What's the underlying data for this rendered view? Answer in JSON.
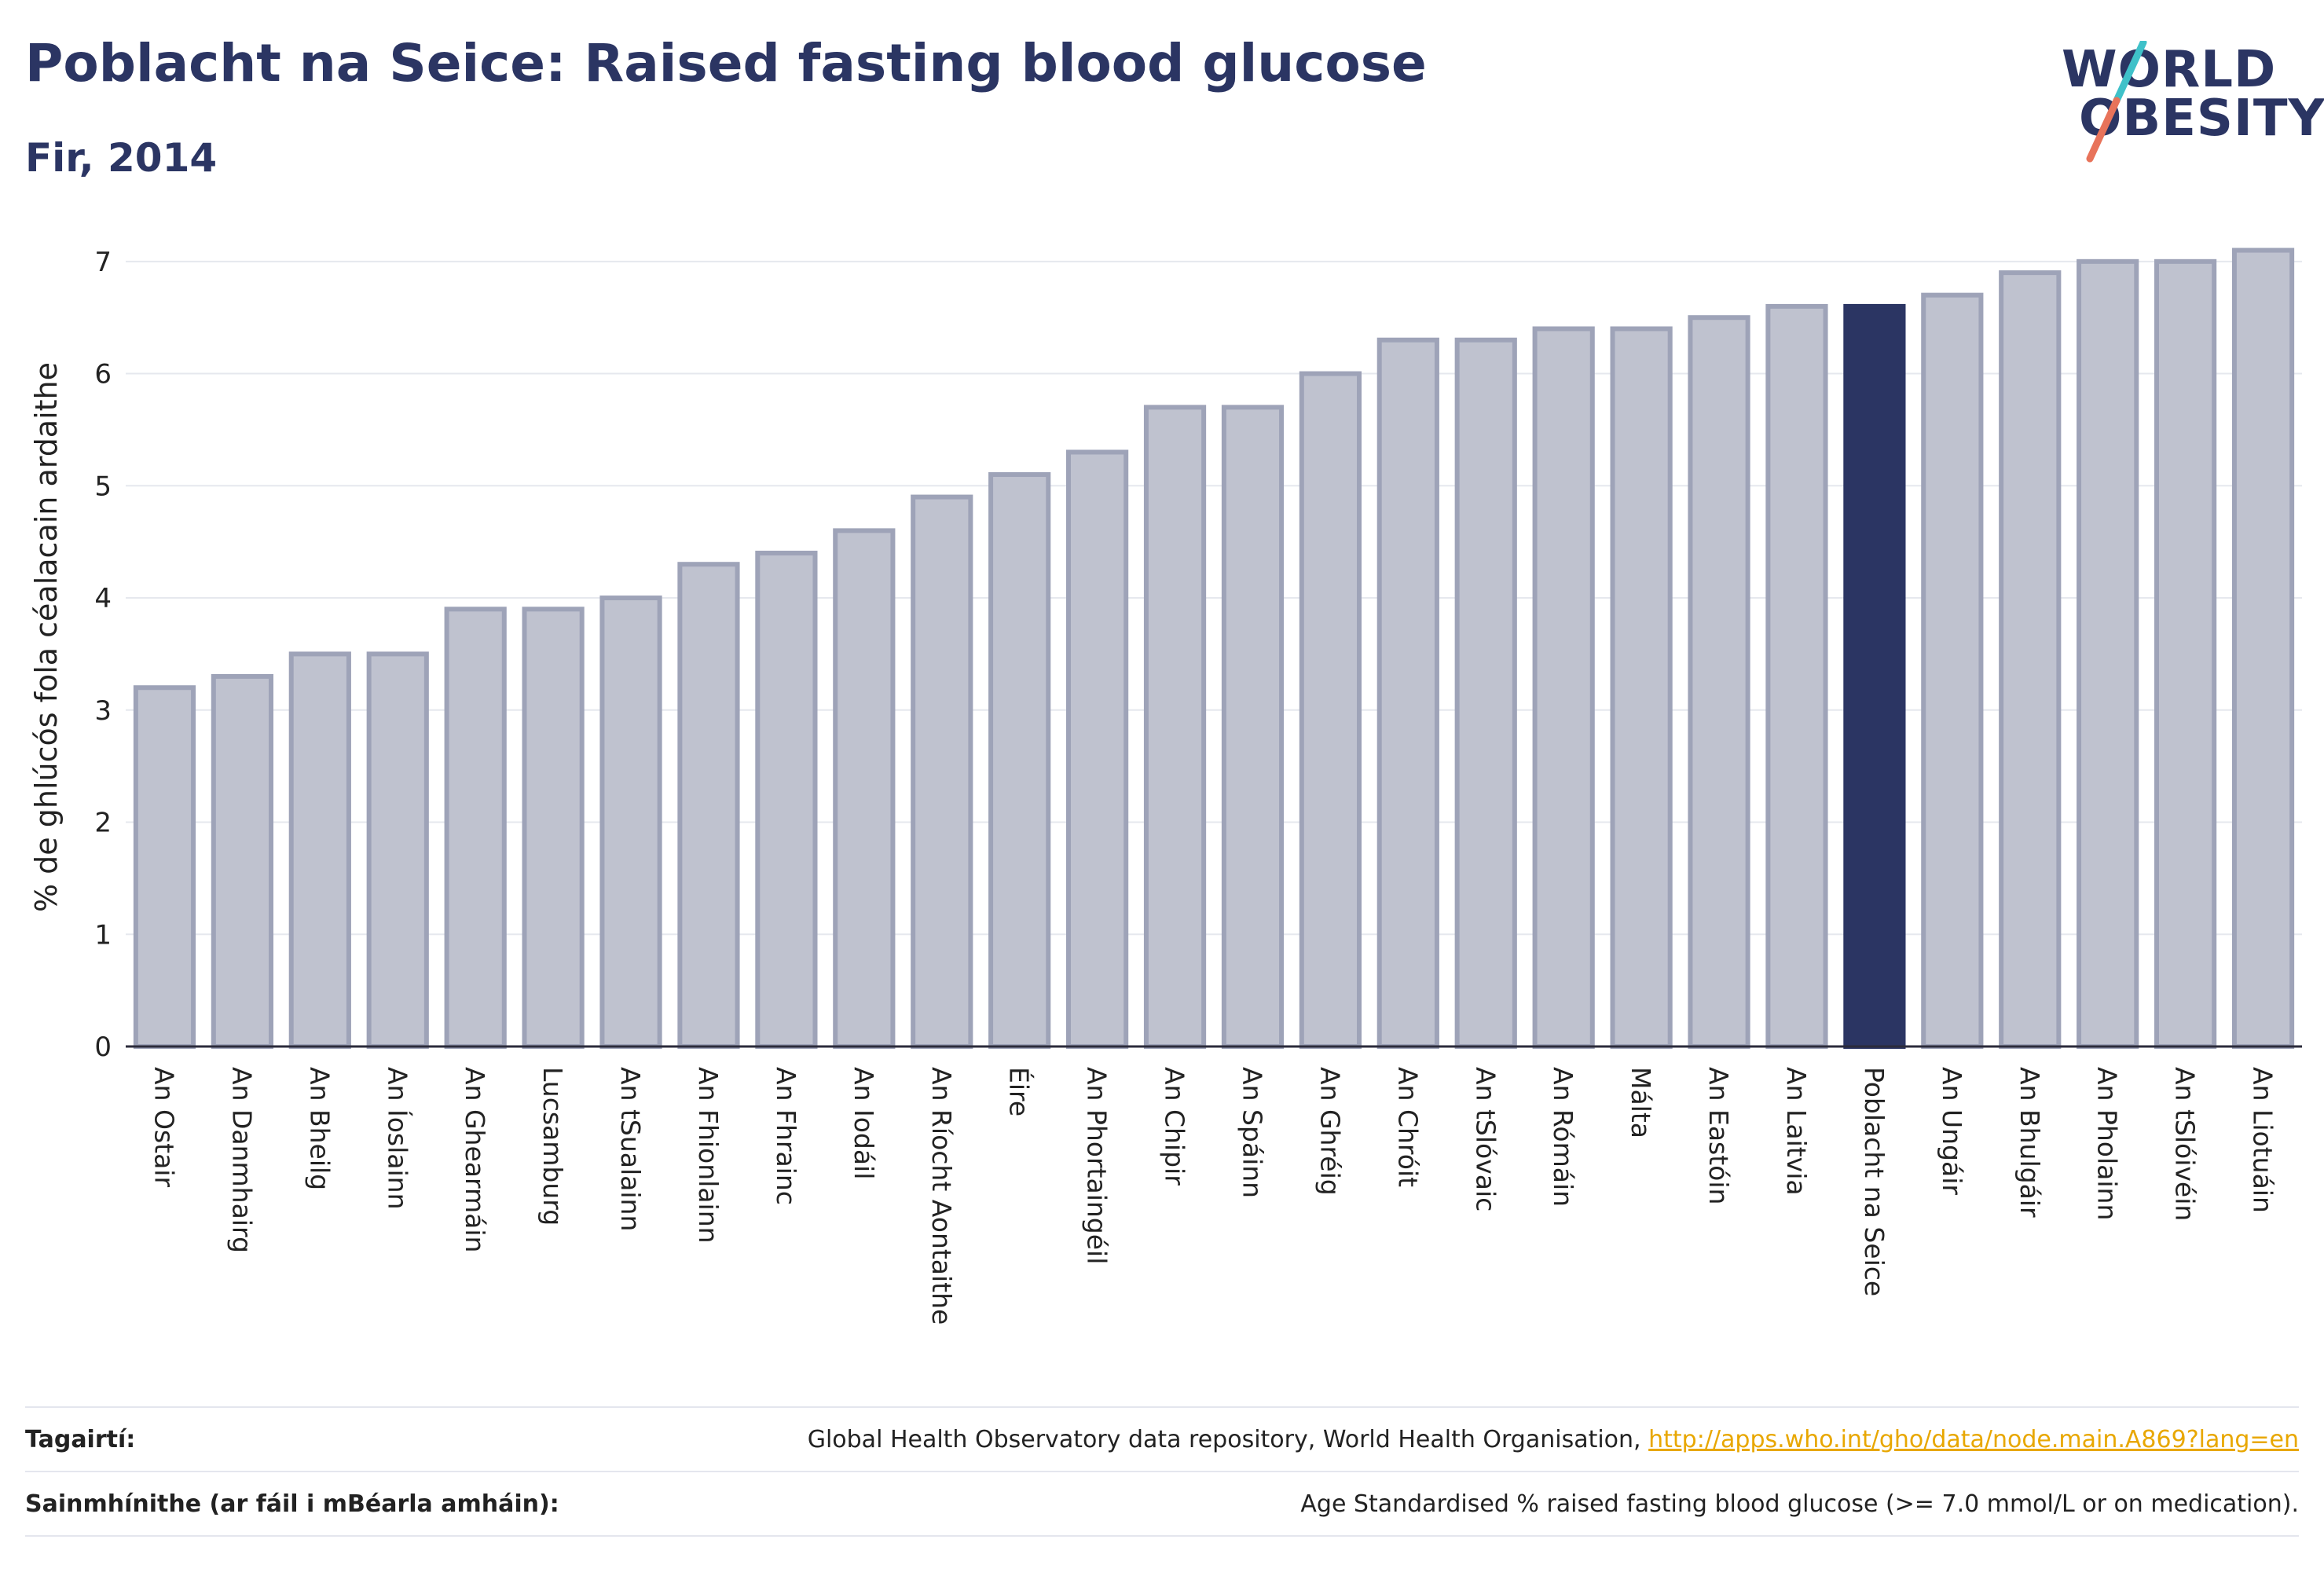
{
  "header": {
    "title": "Poblacht na Seice: Raised fasting blood glucose",
    "subtitle": "Fir, 2014"
  },
  "logo": {
    "line1": "WORLD",
    "line2": "OBESITY",
    "accent_colors": [
      "#3fc1c9",
      "#e8735a"
    ]
  },
  "colors": {
    "bar": "#bfc2cf",
    "bar_border": "#9ea3b8",
    "highlight": "#2b3563"
  },
  "chart_data": {
    "type": "bar",
    "title": "Poblacht na Seice: Raised fasting blood glucose",
    "subtitle": "Fir, 2014",
    "ylabel": "% de ghlúcós fola céalacain ardaithe",
    "xlabel": "",
    "ylim": [
      0,
      7.3
    ],
    "yticks": [
      0,
      1,
      2,
      3,
      4,
      5,
      6,
      7
    ],
    "grid": true,
    "highlight": "Poblacht na Seice",
    "categories": [
      "An Ostair",
      "An Danmhairg",
      "An Bheilg",
      "An Íoslainn",
      "An Ghearmáin",
      "Lucsamburg",
      "An tSualainn",
      "An Fhionlainn",
      "An Fhrainc",
      "An Iodáil",
      "An Ríocht Aontaithe",
      "Éire",
      "An Phortaingéil",
      "An Chipir",
      "An Spáinn",
      "An Ghréig",
      "An Chróit",
      "An tSlóvaic",
      "An Rómáin",
      "Málta",
      "An Eastóin",
      "An Laitvia",
      "Poblacht na Seice",
      "An Ungáir",
      "An Bhulgáir",
      "An Pholainn",
      "An tSlóivéin",
      "An Liotuáin"
    ],
    "values": [
      3.2,
      3.3,
      3.5,
      3.5,
      3.9,
      3.9,
      4.0,
      4.3,
      4.4,
      4.6,
      4.9,
      5.1,
      5.3,
      5.7,
      5.7,
      6.0,
      6.3,
      6.3,
      6.4,
      6.4,
      6.5,
      6.6,
      6.6,
      6.7,
      6.9,
      7.0,
      7.0,
      7.1
    ]
  },
  "footer": {
    "references_label": "Tagairtí:",
    "references_text": "Global Health Observatory data repository, World Health Organisation,",
    "references_link": "http://apps.who.int/gho/data/node.main.A869?lang=en",
    "definitions_label": "Sainmhínithe (ar fáil i mBéarla amháin):",
    "definitions_text": "Age Standardised % raised fasting blood glucose (>= 7.0 mmol/L or on medication)."
  }
}
